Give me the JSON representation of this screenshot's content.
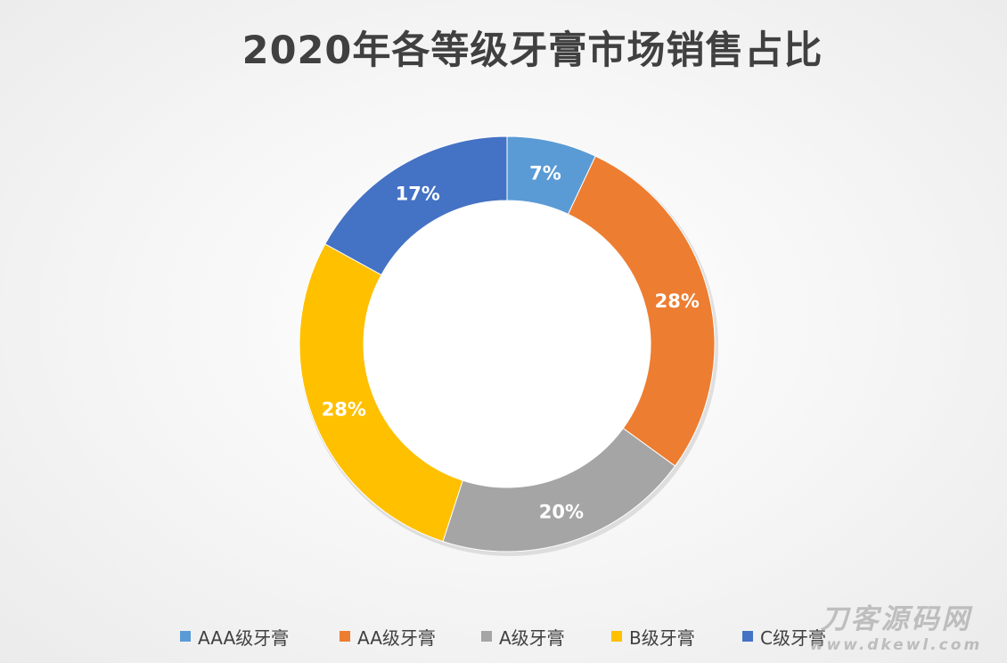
{
  "chart_data": {
    "type": "pie",
    "title": "2020年各等级牙膏市场销售占比",
    "categories": [
      "AAA级牙膏",
      "AA级牙膏",
      "A级牙膏",
      "B级牙膏",
      "C级牙膏"
    ],
    "values": [
      7,
      28,
      20,
      28,
      17
    ],
    "labels": [
      "7%",
      "28%",
      "20%",
      "28%",
      "17%"
    ],
    "colors": [
      "#5b9bd5",
      "#ed7d31",
      "#a5a5a5",
      "#ffc000",
      "#4472c4"
    ],
    "donut": true,
    "legend_position": "bottom"
  },
  "watermark": {
    "text": "刀客源码网",
    "url": "www.dkewl.com"
  }
}
